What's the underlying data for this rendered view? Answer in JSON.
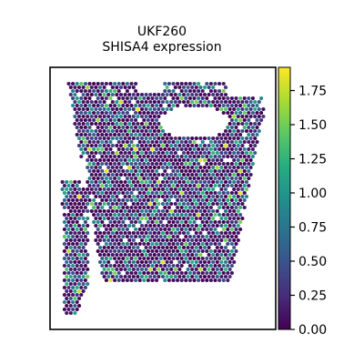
{
  "chart_data": {
    "type": "scatter",
    "title_lines": [
      "UKF260",
      "SHISA4 expression"
    ],
    "colorbar": {
      "colormap": "viridis",
      "range": [
        0.0,
        1.92
      ],
      "ticks": [
        {
          "value": 0.0,
          "label": "0.00"
        },
        {
          "value": 0.25,
          "label": "0.25"
        },
        {
          "value": 0.5,
          "label": "0.50"
        },
        {
          "value": 0.75,
          "label": "0.75"
        },
        {
          "value": 1.0,
          "label": "1.00"
        },
        {
          "value": 1.25,
          "label": "1.25"
        },
        {
          "value": 1.5,
          "label": "1.50"
        },
        {
          "value": 1.75,
          "label": "1.75"
        }
      ]
    },
    "colors": {
      "viridis_low": "#440154",
      "viridis_mid": "#21918c",
      "viridis_high": "#fde725",
      "axes": "#000000",
      "background": "#ffffff"
    },
    "spot_expression": {
      "summary": "SHISA4 expression per spatial spot on a tissue section; most spots near 0, scattered spots 0.5–1.25, few above 1.5"
    }
  }
}
